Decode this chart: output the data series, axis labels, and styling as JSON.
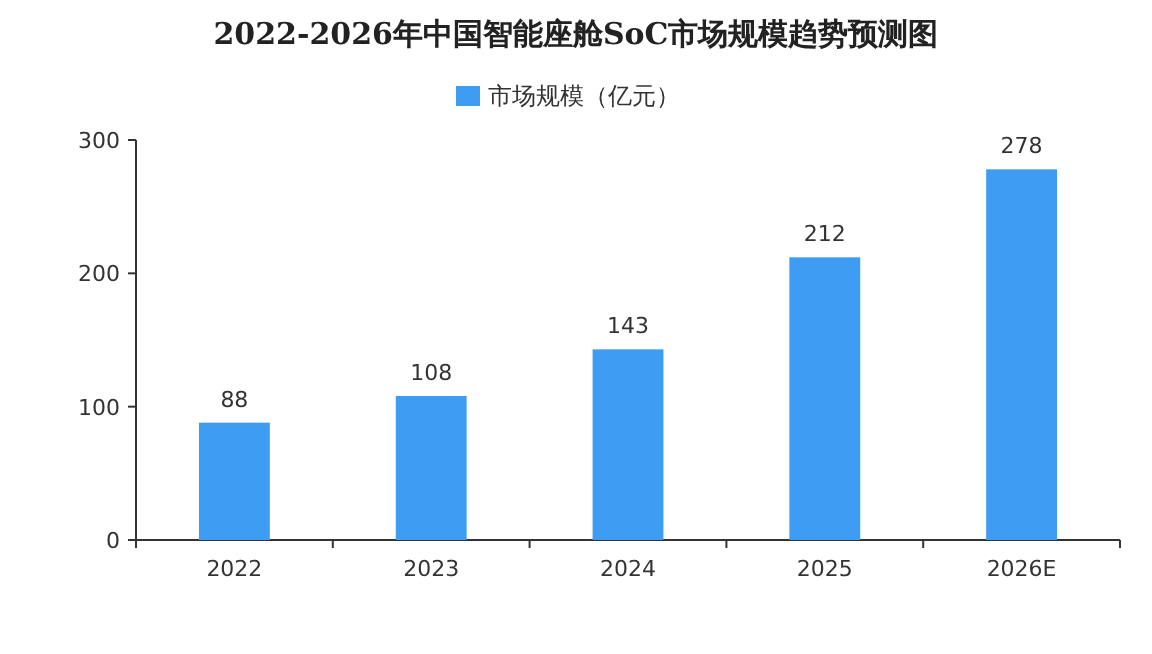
{
  "chart_data": {
    "type": "bar",
    "title": "2022-2026年中国智能座舱SoC市场规模趋势预测图",
    "categories": [
      "2022",
      "2023",
      "2024",
      "2025",
      "2026E"
    ],
    "series": [
      {
        "name": "市场规模（亿元）",
        "color": "#3e9cf2",
        "values": [
          88,
          108,
          143,
          212,
          278
        ]
      }
    ],
    "ylim": [
      0,
      300
    ],
    "yticks": [
      0,
      100,
      200,
      300
    ],
    "data_labels": true,
    "legend": "top"
  }
}
